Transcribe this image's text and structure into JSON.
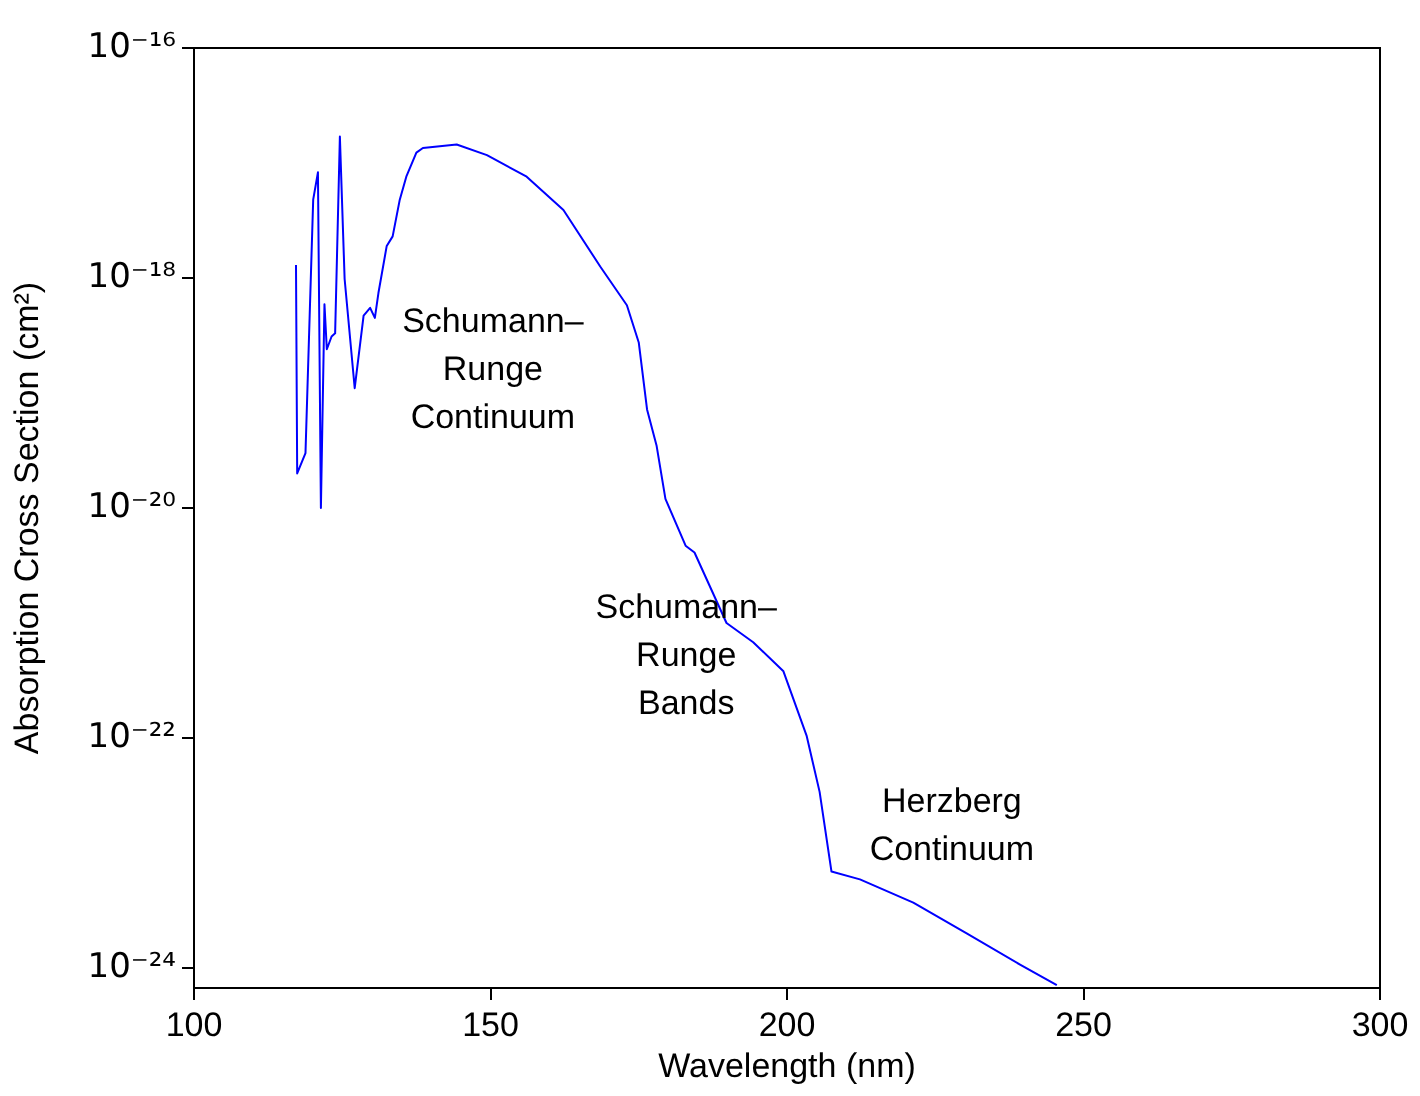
{
  "chart_data": {
    "type": "line",
    "xlabel": "Wavelength (nm)",
    "ylabel": "Absorption Cross Section (cm²)",
    "log": "y",
    "marker": "none",
    "xlim": [
      100,
      300
    ],
    "xticks": [
      100,
      150,
      200,
      250,
      300
    ],
    "ylim": [
      6.7e-25,
      1e-16
    ],
    "yticks": [
      {
        "value": 1e-16,
        "label": "10⁻¹⁶"
      },
      {
        "value": 1e-18,
        "label": "10⁻¹⁸"
      },
      {
        "value": 1e-20,
        "label": "10⁻²⁰"
      },
      {
        "value": 1e-22,
        "label": "10⁻²²"
      },
      {
        "value": 1e-24,
        "label": "10⁻²⁴"
      }
    ],
    "x": [
      117.2,
      117.4,
      118.8,
      120.1,
      120.9,
      121.4,
      122.0,
      122.4,
      123.2,
      123.8,
      124.6,
      125.4,
      127.1,
      128.6,
      129.7,
      130.5,
      131.1,
      132.5,
      133.5,
      134.7,
      135.8,
      137.5,
      138.6,
      144.3,
      149.4,
      156.1,
      162.3,
      168.5,
      173.0,
      175.0,
      176.4,
      178.0,
      179.5,
      182.9,
      184.4,
      189.8,
      194.3,
      199.4,
      203.3,
      205.5,
      207.5,
      212.3,
      221.3,
      230.3,
      239.3,
      245.5
    ],
    "series": [
      {
        "color": "#0000ff",
        "values": [
          1.3e-18,
          2e-20,
          3e-20,
          4.8e-18,
          8.3e-18,
          1e-20,
          5.9e-19,
          2.4e-19,
          3.1e-19,
          3.3e-19,
          1.7e-17,
          9.8e-19,
          1.1e-19,
          4.7e-19,
          5.5e-19,
          4.5e-19,
          7.4e-19,
          1.9e-18,
          2.3e-18,
          4.8e-18,
          7.6e-18,
          1.23e-17,
          1.35e-17,
          1.45e-17,
          1.17e-17,
          7.6e-18,
          3.9e-18,
          1.26e-18,
          5.8e-19,
          2.75e-19,
          7.2e-20,
          3.5e-20,
          1.2e-20,
          4.7e-21,
          4.1e-21,
          1e-21,
          6.8e-22,
          3.8e-22,
          1.05e-22,
          3.4e-23,
          6.9e-24,
          5.9e-24,
          3.7e-24,
          2e-24,
          1.07e-24,
          7.1e-25
        ]
      }
    ],
    "annotations": [
      "Schumann–\nRunge\nContinuum",
      "Schumann–\nRunge\nBands",
      "Herzberg\nContinuum"
    ]
  }
}
